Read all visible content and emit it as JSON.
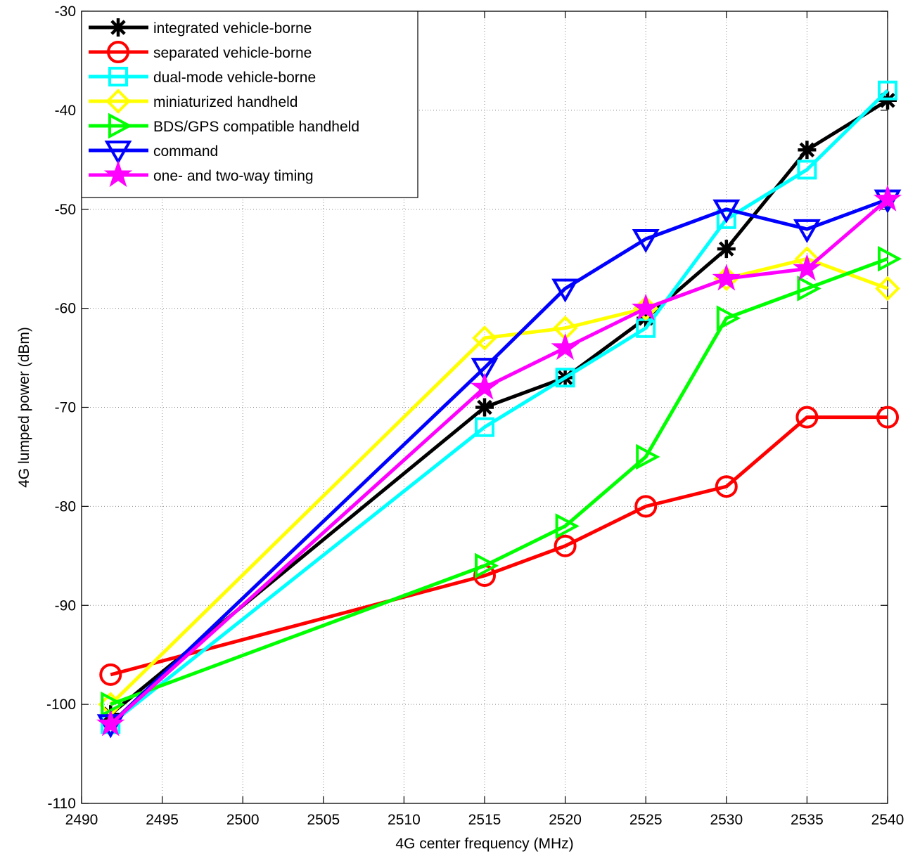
{
  "chart_data": {
    "type": "line",
    "title": "",
    "xlabel": "4G center frequency  (MHz)",
    "ylabel": "4G lumped power  (dBm)",
    "xlim": [
      2490,
      2540
    ],
    "ylim": [
      -110,
      -30
    ],
    "xticks": [
      2490,
      2495,
      2500,
      2505,
      2510,
      2515,
      2520,
      2525,
      2530,
      2535,
      2540
    ],
    "yticks": [
      -110,
      -100,
      -90,
      -80,
      -70,
      -60,
      -50,
      -40,
      -30
    ],
    "grid": true,
    "legend_position": "top-left",
    "x": [
      2491.8,
      2515,
      2520,
      2525,
      2530,
      2535,
      2540
    ],
    "series": [
      {
        "name": "integrated vehicle-borne",
        "color": "#000000",
        "marker": "asterisk",
        "values": [
          -101,
          -70,
          -67,
          -61,
          -54,
          -44,
          -39
        ]
      },
      {
        "name": "separated vehicle-borne",
        "color": "#ff0000",
        "marker": "circle",
        "values": [
          -97,
          -87,
          -84,
          -80,
          -78,
          -71,
          -71
        ]
      },
      {
        "name": "dual-mode vehicle-borne",
        "color": "#00ffff",
        "marker": "square",
        "values": [
          -102,
          -72,
          -67,
          -62,
          -51,
          -46,
          -38
        ]
      },
      {
        "name": "miniaturized handheld",
        "color": "#ffff00",
        "marker": "diamond",
        "values": [
          -100,
          -63,
          -62,
          -60,
          -57,
          -55,
          -58
        ]
      },
      {
        "name": "BDS/GPS compatible handheld",
        "color": "#00ff00",
        "marker": "triangle-right",
        "values": [
          -100,
          -86,
          -82,
          -75,
          -61,
          -58,
          -55
        ]
      },
      {
        "name": "command",
        "color": "#0000ff",
        "marker": "triangle-down",
        "values": [
          -102,
          -66,
          -58,
          -53,
          -50,
          -52,
          -49
        ]
      },
      {
        "name": "one- and two-way timing",
        "color": "#ff00ff",
        "marker": "star",
        "values": [
          -102,
          -68,
          -64,
          -60,
          -57,
          -56,
          -49
        ]
      }
    ]
  }
}
